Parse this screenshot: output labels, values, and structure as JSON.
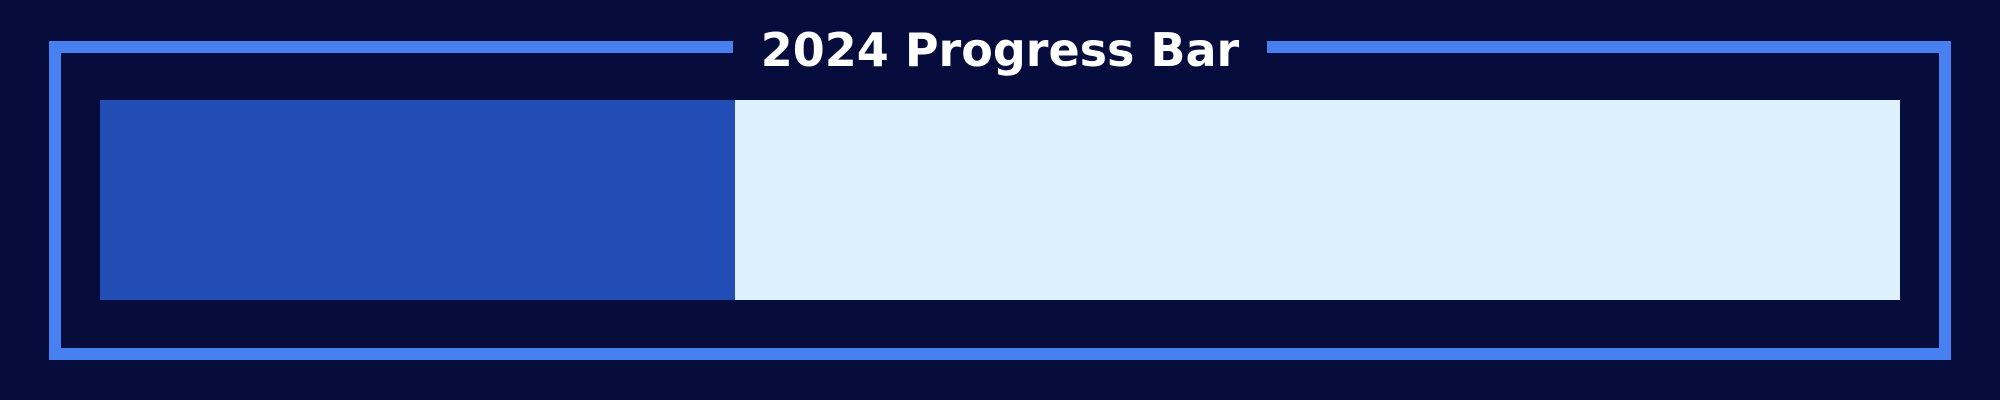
{
  "title": "2024 Progress Bar",
  "progress": {
    "percent": 35.3
  },
  "colors": {
    "background": "#060c3b",
    "frame": "#4680f1",
    "fill": "#214db4",
    "track": "#dcf1fd",
    "title_text": "#ffffff"
  }
}
